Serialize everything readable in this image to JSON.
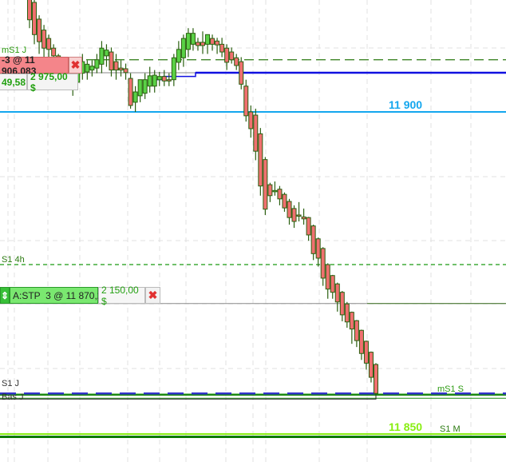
{
  "chart_data": {
    "type": "candlestick",
    "y_reference": [
      11900,
      11850
    ],
    "colors": {
      "up": "#5ad146",
      "down": "#f07070",
      "outline": "#2b6010",
      "grid": "#e0e0e0"
    },
    "candles": [
      [
        11918,
        11919,
        11913,
        11914.3
      ],
      [
        11917,
        11918,
        11910.5,
        11912
      ],
      [
        11914.4,
        11915,
        11909,
        11910.9
      ],
      [
        11912.7,
        11913.5,
        11908.5,
        11909.9
      ],
      [
        11911.4,
        11912,
        11908,
        11909.7
      ],
      [
        11909.9,
        11910.5,
        11907,
        11908.7
      ],
      [
        11908.7,
        11909,
        11905,
        11906
      ],
      [
        11906.5,
        11907.5,
        11904.5,
        11905.2
      ],
      [
        11905.5,
        11906.5,
        11904,
        11904.5
      ],
      [
        11905.2,
        11906,
        11902.5,
        11903.7
      ],
      [
        11904.6,
        11908.5,
        11903.5,
        11907.4
      ],
      [
        11906,
        11909,
        11905,
        11907.8
      ],
      [
        11906.2,
        11908,
        11905,
        11907.4
      ],
      [
        11906.5,
        11908,
        11905.5,
        11907.1
      ],
      [
        11906.8,
        11909,
        11906,
        11908.1
      ],
      [
        11907.4,
        11911,
        11906,
        11909.9
      ],
      [
        11908.7,
        11910.5,
        11907,
        11909.6
      ],
      [
        11909.3,
        11910,
        11905.5,
        11906.5
      ],
      [
        11907.8,
        11909,
        11905,
        11906.5
      ],
      [
        11906.8,
        11908,
        11905.5,
        11906.5
      ],
      [
        11906.7,
        11907.5,
        11905,
        11906.1
      ],
      [
        11905.2,
        11906,
        11900.5,
        11901
      ],
      [
        11901.5,
        11904,
        11900,
        11903.1
      ],
      [
        11902.5,
        11905,
        11901.5,
        11905
      ],
      [
        11902.9,
        11906,
        11902,
        11905
      ],
      [
        11904,
        11907,
        11903,
        11905.6
      ],
      [
        11904,
        11906.5,
        11903,
        11905.7
      ],
      [
        11905,
        11906.2,
        11904,
        11905.5
      ],
      [
        11905.5,
        11906.5,
        11904,
        11904.8
      ],
      [
        11905,
        11906,
        11904,
        11904.8
      ],
      [
        11905,
        11909,
        11904,
        11908.4
      ],
      [
        11907.7,
        11911,
        11906.5,
        11909.7
      ],
      [
        11908.4,
        11912,
        11907,
        11911.4
      ],
      [
        11909.7,
        11913,
        11908.5,
        11912.2
      ],
      [
        11910.5,
        11913,
        11909.5,
        11912.2
      ],
      [
        11910.8,
        11911.5,
        11909.5,
        11910.3
      ],
      [
        11910.8,
        11912.5,
        11909,
        11910.3
      ],
      [
        11910.5,
        11912,
        11909,
        11912
      ],
      [
        11911.4,
        11912,
        11909.5,
        11910.5
      ],
      [
        11911,
        11911.5,
        11909,
        11910.4
      ],
      [
        11910.5,
        11911.5,
        11908.5,
        11909.3
      ],
      [
        11909.9,
        11910.5,
        11906.5,
        11907.7
      ],
      [
        11909.3,
        11910,
        11907.5,
        11908.1
      ],
      [
        11908.4,
        11909,
        11906.5,
        11907.2
      ],
      [
        11907.8,
        11908.5,
        11903.5,
        11904.3
      ],
      [
        11904,
        11905,
        11898.5,
        11899.4
      ],
      [
        11900,
        11901,
        11896,
        11897.4
      ],
      [
        11899.5,
        11900.5,
        11892.5,
        11893.9
      ],
      [
        11896.6,
        11897.5,
        11887,
        11888.5
      ],
      [
        11892.6,
        11893,
        11884,
        11884.9
      ],
      [
        11888.7,
        11889,
        11886,
        11887
      ],
      [
        11887.8,
        11889.2,
        11887,
        11887.8
      ],
      [
        11888,
        11888.5,
        11885.5,
        11886.5
      ],
      [
        11887.2,
        11887.5,
        11884.5,
        11885.1
      ],
      [
        11886.1,
        11886.5,
        11882.5,
        11883.6
      ],
      [
        11885,
        11885.5,
        11882,
        11883
      ],
      [
        11884,
        11886,
        11883,
        11883.9
      ],
      [
        11883.7,
        11885,
        11882.5,
        11883.4
      ],
      [
        11883.6,
        11883.7,
        11880,
        11880.9
      ],
      [
        11882.3,
        11882.5,
        11877,
        11878
      ],
      [
        11880.3,
        11880.5,
        11876,
        11877.3
      ],
      [
        11878.8,
        11879,
        11873,
        11874.2
      ],
      [
        11876.3,
        11876.5,
        11871,
        11872.5
      ],
      [
        11874.6,
        11874.7,
        11871,
        11872
      ],
      [
        11873.3,
        11873.5,
        11869,
        11870.5
      ],
      [
        11872,
        11872.2,
        11867.5,
        11868.5
      ],
      [
        11870.2,
        11870.5,
        11866.5,
        11867.4
      ],
      [
        11868.9,
        11869,
        11864,
        11866.3
      ],
      [
        11867.6,
        11867.7,
        11863.5,
        11864.5
      ],
      [
        11866.1,
        11866.2,
        11861.5,
        11862.5
      ],
      [
        11864.4,
        11864.5,
        11860,
        11861
      ],
      [
        11862.7,
        11862.8,
        11858,
        11858.8
      ],
      [
        11860.8,
        11861,
        11856,
        11856.3
      ]
    ],
    "levels": [
      {
        "name": "mS1 J",
        "price": 11908.1,
        "style": "dashed",
        "color": "#2b7a10"
      },
      {
        "name": "order-line",
        "price": 11906.083,
        "style": "solid",
        "color": "#8a8a8a"
      },
      {
        "name": "stop-line",
        "price": 11905.5,
        "style": "solid",
        "color": "#1010e0"
      },
      {
        "name": "11 900",
        "price": 11900,
        "style": "solid",
        "color": "#13a6ee"
      },
      {
        "name": "S1 4h",
        "price": 11876.3,
        "style": "dashed",
        "color": "#1a9a10"
      },
      {
        "name": "stp-line",
        "price": 11870.25,
        "style": "solid",
        "color": "#8a8a8a"
      },
      {
        "name": "mS1 S",
        "price": 11856.3,
        "style": "dashed",
        "color": "#3333cc"
      },
      {
        "name": "11 850",
        "price": 11850,
        "style": "solid",
        "color": "#88ee11"
      }
    ]
  },
  "labels": {
    "ms1_j": "mS1 J",
    "s1_4h": "S1 4h",
    "s1_j": "S1 J",
    "bas_j": "Bas J",
    "ms1_s": "mS1 S",
    "s1_m": "S1 M",
    "price_11900": "11 900",
    "price_11850": "11 850"
  },
  "orders": {
    "short": {
      "text": "-3 @ 11 906,083",
      "pnl_points": "49,58",
      "pnl_value": "2 975,00 $",
      "close": "✖"
    },
    "stop": {
      "handle": "⇕",
      "text": "A:STP  3 @ 11 870,25",
      "value": "2 150,00 $",
      "close": "✖"
    }
  }
}
